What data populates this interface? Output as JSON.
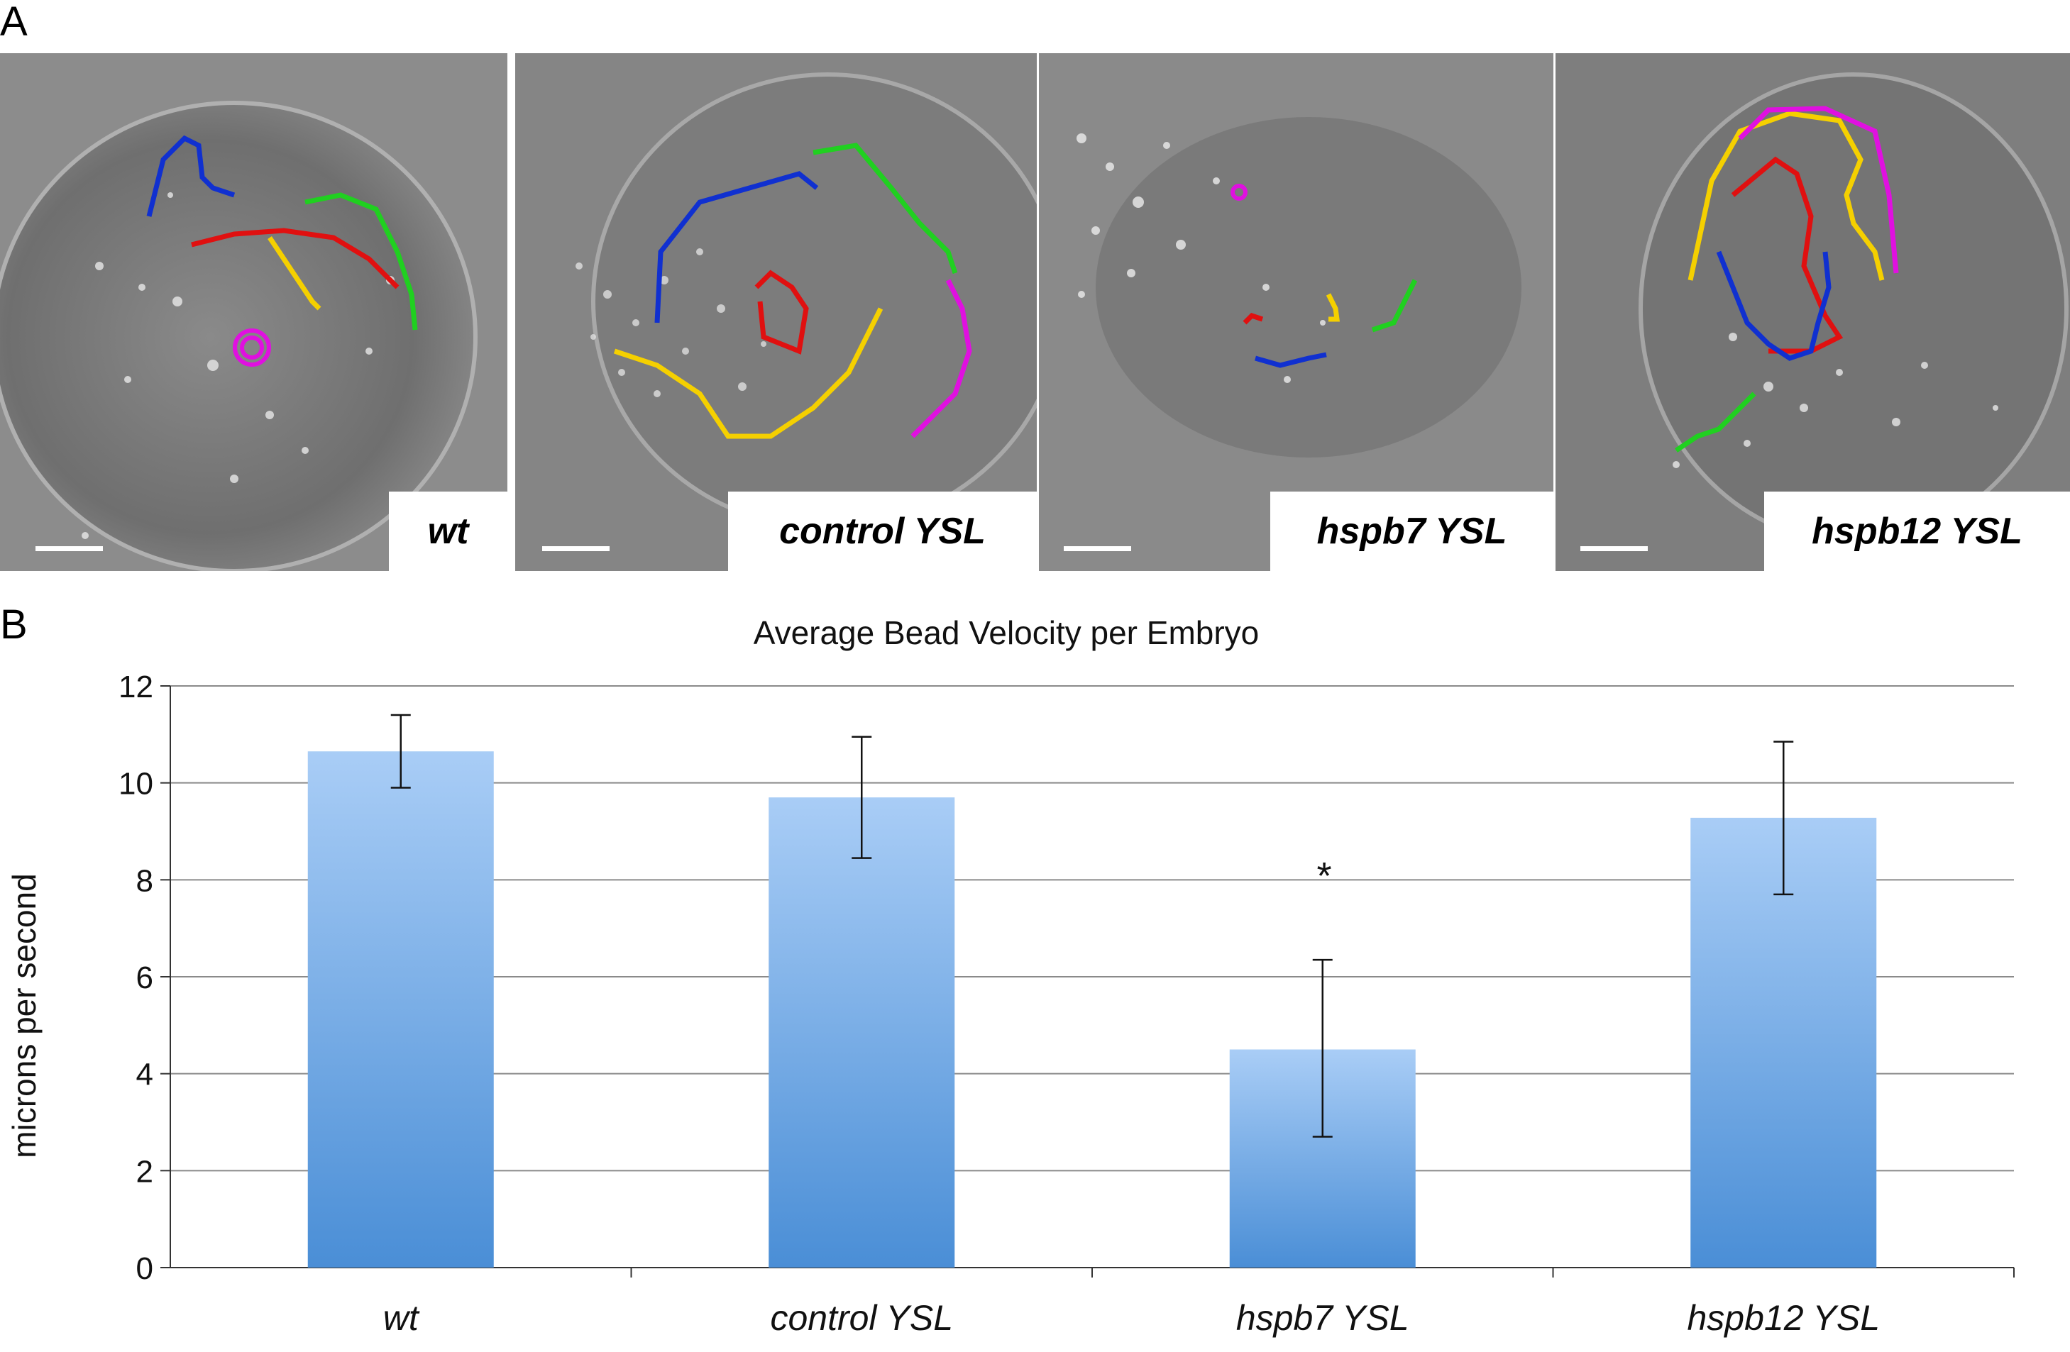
{
  "panels": {
    "a_letter": "A",
    "b_letter": "B"
  },
  "micrographs": [
    {
      "label": "wt"
    },
    {
      "label": "control YSL"
    },
    {
      "label": "hspb7 YSL"
    },
    {
      "label": "hspb12 YSL"
    }
  ],
  "track_colors": {
    "blue": "#1030d0",
    "red": "#e01010",
    "green": "#20d020",
    "yellow": "#f5d000",
    "magenta": "#e010e0"
  },
  "chart_data": {
    "type": "bar",
    "title": "Average Bead Velocity per Embryo",
    "ylabel": "microns per second",
    "xlabel": "",
    "categories": [
      "wt",
      "control YSL",
      "hspb7 YSL",
      "hspb12 YSL"
    ],
    "values": [
      10.65,
      9.7,
      4.5,
      9.28
    ],
    "error_low": [
      9.9,
      8.45,
      2.7,
      7.7
    ],
    "error_high": [
      11.4,
      10.95,
      6.35,
      10.85
    ],
    "ylim": [
      0,
      12
    ],
    "yticks": [
      0,
      2,
      4,
      6,
      8,
      10,
      12
    ],
    "ytick_labels": [
      "0",
      "2",
      "4",
      "6",
      "8",
      "10",
      "12"
    ],
    "significance": [
      {
        "category": "hspb7 YSL",
        "mark": "*"
      }
    ],
    "grid": true,
    "bar_color_top": "#a9cdf6",
    "bar_color_bottom": "#4a8ed6"
  }
}
